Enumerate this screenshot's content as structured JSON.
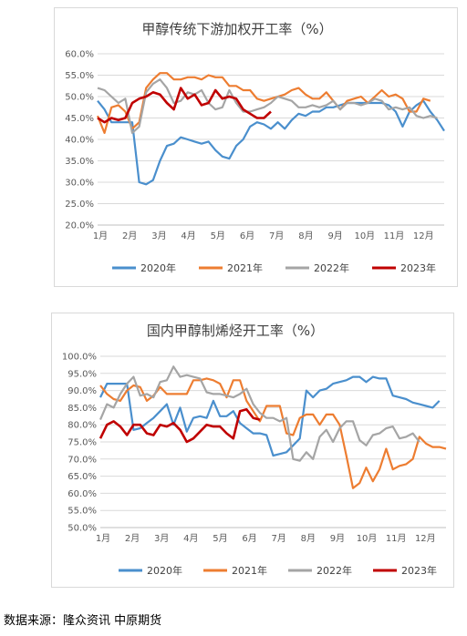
{
  "source_text": "数据来源：隆众资讯  中原期货",
  "chart_data": [
    {
      "type": "line",
      "title": "甲醇传统下游加权开工率（%）",
      "x_ticks": [
        "1月",
        "2月",
        "3月",
        "4月",
        "5月",
        "6月",
        "7月",
        "8月",
        "9月",
        "10月",
        "11月",
        "12月"
      ],
      "y_ticks": [
        "20.0%",
        "25.0%",
        "30.0%",
        "35.0%",
        "40.0%",
        "45.0%",
        "50.0%",
        "55.0%",
        "60.0%"
      ],
      "ylim": [
        20,
        60
      ],
      "grid": "horizontal",
      "legend_position": "bottom",
      "series": [
        {
          "name": "2020年",
          "color": "#4a8fcd",
          "values": [
            49,
            47,
            44,
            44,
            44,
            44,
            30,
            29.5,
            30.5,
            35,
            38.5,
            39,
            40.5,
            40,
            39.5,
            39,
            39.5,
            37.5,
            36,
            35.5,
            38.5,
            40,
            43,
            44,
            43.5,
            42.5,
            44,
            42.5,
            44.5,
            46,
            45.5,
            46.5,
            46.5,
            47.5,
            47.5,
            48,
            48.5,
            48.5,
            48.5,
            48.5,
            48.5,
            48.5,
            48,
            46.5,
            43,
            46.5,
            48,
            49,
            46.5,
            44.5,
            42
          ]
        },
        {
          "name": "2021年",
          "color": "#ed7d31",
          "values": [
            45.5,
            41.5,
            47.5,
            48,
            46.5,
            42.5,
            44,
            52,
            54,
            55.5,
            55.5,
            54,
            54,
            54.5,
            54.5,
            54,
            55,
            54.5,
            54.5,
            52.5,
            52.5,
            51.5,
            51.5,
            49.5,
            49,
            49.5,
            50,
            50.5,
            51.5,
            52,
            50.5,
            49.5,
            49.5,
            51,
            49,
            47,
            49,
            49.5,
            50,
            48.5,
            50,
            51.5,
            50,
            50.5,
            49.5,
            46.5,
            46.5,
            49.5,
            49
          ]
        },
        {
          "name": "2022年",
          "color": "#a5a5a5",
          "values": [
            52,
            51.5,
            50,
            48.5,
            49.5,
            41.5,
            43,
            51,
            53,
            54,
            52,
            48.5,
            49,
            51,
            50.5,
            51.5,
            48.5,
            47,
            47.5,
            51.5,
            48.5,
            46.5,
            46.5,
            47,
            47.5,
            48.5,
            50,
            49.5,
            49,
            47.5,
            47.5,
            48,
            47.5,
            48,
            49,
            47,
            48.5,
            48.5,
            48,
            48.5,
            49.5,
            49,
            47,
            47.5,
            47,
            47.5,
            45.5,
            45,
            45.5,
            45
          ]
        },
        {
          "name": "2023年",
          "color": "#c00000",
          "values": [
            45,
            44,
            45,
            44.5,
            45,
            48.5,
            49.5,
            50,
            51,
            50.5,
            48.5,
            47,
            52,
            49.5,
            50.5,
            48,
            48.5,
            51.5,
            49.5,
            50,
            49.5,
            47,
            46,
            45,
            45,
            46.5
          ]
        }
      ]
    },
    {
      "type": "line",
      "title": "国内甲醇制烯烃开工率（%）",
      "x_ticks": [
        "1月",
        "2月",
        "3月",
        "4月",
        "5月",
        "6月",
        "7月",
        "8月",
        "9月",
        "10月",
        "11月",
        "12月"
      ],
      "y_ticks": [
        "50.0%",
        "55.0%",
        "60.0%",
        "65.0%",
        "70.0%",
        "75.0%",
        "80.0%",
        "85.0%",
        "90.0%",
        "95.0%",
        "100.0%"
      ],
      "ylim": [
        50,
        100
      ],
      "grid": "horizontal",
      "legend_position": "bottom",
      "series": [
        {
          "name": "2020年",
          "color": "#4a8fcd",
          "values": [
            88,
            92,
            92,
            92,
            92,
            78.5,
            79,
            80.5,
            82,
            84,
            86,
            80,
            85,
            78,
            82,
            82.5,
            82,
            87,
            82.5,
            82.5,
            84,
            80.5,
            79,
            77.5,
            77.5,
            77,
            71,
            71.5,
            72,
            74,
            76,
            90,
            88,
            90,
            90.5,
            92,
            92.5,
            93,
            94,
            94,
            92.5,
            94,
            93.5,
            93.5,
            88.5,
            88,
            87.5,
            86.5,
            86,
            85.5,
            85,
            87
          ]
        },
        {
          "name": "2021年",
          "color": "#ed7d31",
          "values": [
            91.5,
            89,
            87.5,
            87,
            90,
            91.5,
            91,
            87,
            88.5,
            91,
            89,
            89,
            89,
            89,
            93,
            93,
            93.5,
            93,
            92,
            88,
            93,
            93,
            87,
            84,
            81,
            85.5,
            85.5,
            85.5,
            77.5,
            77,
            82,
            83,
            83,
            80,
            83,
            83,
            80,
            71,
            61.5,
            63,
            67.5,
            63.5,
            67,
            73,
            67,
            68,
            68.5,
            70,
            76.5,
            74.5,
            73.5,
            73.5,
            73
          ]
        },
        {
          "name": "2022年",
          "color": "#a5a5a5",
          "values": [
            81.5,
            86,
            85,
            89,
            92,
            94,
            88.5,
            89,
            88,
            92.5,
            93,
            97,
            94,
            94.5,
            94,
            93.5,
            89.5,
            89,
            89,
            88.5,
            88,
            89,
            90.5,
            86,
            83.5,
            82,
            82,
            81,
            82,
            70,
            69.5,
            72,
            70,
            76.5,
            78.5,
            75,
            79,
            81,
            81,
            75.5,
            74,
            77,
            77.5,
            79,
            79.5,
            76,
            76.5,
            77.5,
            75
          ]
        },
        {
          "name": "2023年",
          "color": "#c00000",
          "values": [
            76,
            80,
            81,
            79.5,
            77,
            80,
            80,
            77.5,
            77,
            80,
            79.5,
            80.5,
            78.5,
            75,
            76,
            78,
            80,
            79.5,
            79.5,
            77.5,
            76,
            84,
            84.5,
            82,
            81.5
          ]
        }
      ]
    }
  ]
}
